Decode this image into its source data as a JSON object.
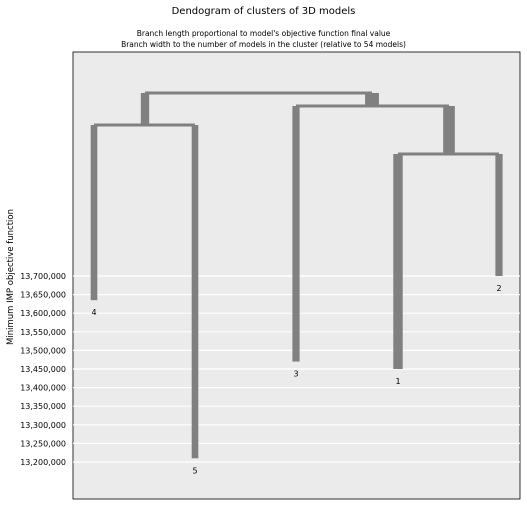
{
  "chart_data": {
    "type": "dendrogram",
    "title": "Dendogram of clusters of 3D models",
    "subtitle_lines": [
      "Branch length proportional to model's objective function final value",
      "Branch width to the number of models in the cluster (relative to 54 models)"
    ],
    "ylabel": "Minimum IMP objective function",
    "yticks": [
      13700000,
      13650000,
      13600000,
      13550000,
      13500000,
      13450000,
      13400000,
      13350000,
      13300000,
      13250000,
      13200000
    ],
    "ytick_labels": [
      "13,700,000",
      "13,650,000",
      "13,600,000",
      "13,550,000",
      "13,500,000",
      "13,450,000",
      "13,400,000",
      "13,350,000",
      "13,300,000",
      "13,250,000",
      "13,200,000"
    ],
    "grid": true,
    "total_models": 54,
    "leaves": [
      {
        "label": "4",
        "value": 13635000,
        "models": 3
      },
      {
        "label": "5",
        "value": 13210000,
        "models": 3
      },
      {
        "label": "3",
        "value": 13470000,
        "models": 4
      },
      {
        "label": "1",
        "value": 13450000,
        "models": 8
      },
      {
        "label": "2",
        "value": 13700000,
        "models": 4
      }
    ]
  },
  "colors": {
    "panel": "#ebebeb",
    "grid": "#ffffff",
    "branch": "#808080"
  }
}
